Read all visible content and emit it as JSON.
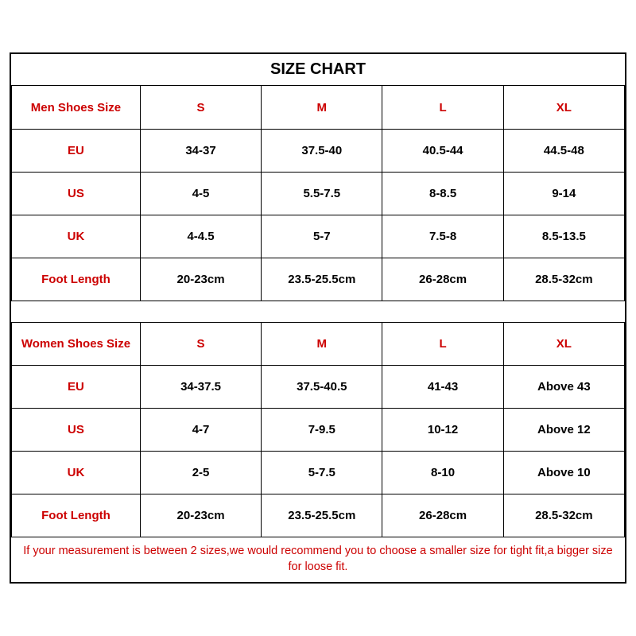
{
  "title": "SIZE CHART",
  "colors": {
    "accent": "#cc0000",
    "text": "#000000",
    "border": "#000000",
    "background": "#ffffff"
  },
  "font_sizes": {
    "title": 20,
    "cell": 15,
    "footer": 14.5
  },
  "men": {
    "header_label": "Men Shoes Size",
    "sizes": [
      "S",
      "M",
      "L",
      "XL"
    ],
    "rows": [
      {
        "label": "EU",
        "values": [
          "34-37",
          "37.5-40",
          "40.5-44",
          "44.5-48"
        ]
      },
      {
        "label": "US",
        "values": [
          "4-5",
          "5.5-7.5",
          "8-8.5",
          "9-14"
        ]
      },
      {
        "label": "UK",
        "values": [
          "4-4.5",
          "5-7",
          "7.5-8",
          "8.5-13.5"
        ]
      },
      {
        "label": "Foot Length",
        "values": [
          "20-23cm",
          "23.5-25.5cm",
          "26-28cm",
          "28.5-32cm"
        ]
      }
    ]
  },
  "women": {
    "header_label": "Women Shoes Size",
    "sizes": [
      "S",
      "M",
      "L",
      "XL"
    ],
    "rows": [
      {
        "label": "EU",
        "values": [
          "34-37.5",
          "37.5-40.5",
          "41-43",
          "Above 43"
        ]
      },
      {
        "label": "US",
        "values": [
          "4-7",
          "7-9.5",
          "10-12",
          "Above 12"
        ]
      },
      {
        "label": "UK",
        "values": [
          "2-5",
          "5-7.5",
          "8-10",
          "Above 10"
        ]
      },
      {
        "label": "Foot Length",
        "values": [
          "20-23cm",
          "23.5-25.5cm",
          "26-28cm",
          "28.5-32cm"
        ]
      }
    ]
  },
  "footer": "If your measurement is between 2 sizes,we would recommend you to choose a smaller size for tight fit,a bigger size for loose fit."
}
